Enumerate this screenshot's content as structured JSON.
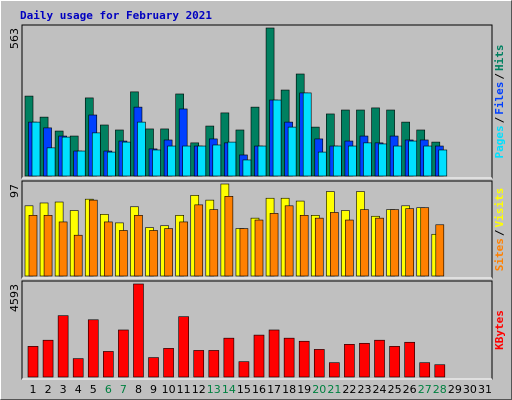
{
  "chart_data": [
    {
      "type": "bar",
      "title": "Daily usage for February 2021",
      "ylim": [
        0,
        563
      ],
      "yticks": [
        563
      ],
      "separator": "/",
      "series": [
        {
          "name": "Hits",
          "color": "#008060",
          "values": [
            304,
            224,
            171,
            152,
            297,
            194,
            175,
            320,
            179,
            179,
            312,
            126,
            190,
            240,
            175,
            262,
            563,
            327,
            388,
            186,
            236,
            251,
            251,
            259,
            251,
            205,
            175,
            129,
            null,
            null,
            null
          ]
        },
        {
          "name": "Files",
          "color": "#0040FF",
          "values": [
            205,
            183,
            152,
            95,
            232,
            95,
            133,
            262,
            103,
            137,
            255,
            114,
            141,
            126,
            80,
            114,
            289,
            205,
            316,
            141,
            114,
            133,
            152,
            126,
            152,
            137,
            137,
            114,
            null,
            null,
            null
          ]
        },
        {
          "name": "Pages",
          "color": "#00E0FF",
          "values": [
            205,
            107,
            148,
            95,
            164,
            91,
            129,
            205,
            99,
            114,
            114,
            114,
            118,
            129,
            61,
            114,
            289,
            186,
            316,
            91,
            114,
            114,
            126,
            122,
            114,
            133,
            114,
            99,
            null,
            null,
            null
          ]
        }
      ]
    },
    {
      "type": "bar",
      "ylim": [
        0,
        97
      ],
      "yticks": [
        97
      ],
      "separator": "/",
      "series": [
        {
          "name": "Visits",
          "color": "#FFFF00",
          "values": [
            74,
            77,
            78,
            69,
            81,
            65,
            56,
            73,
            51,
            53,
            64,
            85,
            80,
            97,
            50,
            61,
            82,
            82,
            79,
            64,
            89,
            69,
            89,
            63,
            70,
            74,
            72,
            44,
            null,
            null,
            null
          ]
        },
        {
          "name": "Sites",
          "color": "#FF8000",
          "values": [
            64,
            64,
            57,
            43,
            80,
            57,
            48,
            64,
            48,
            50,
            57,
            75,
            70,
            84,
            50,
            59,
            66,
            74,
            64,
            61,
            67,
            59,
            70,
            61,
            70,
            71,
            72,
            54,
            null,
            null,
            null
          ]
        }
      ]
    },
    {
      "type": "bar",
      "ylim": [
        0,
        4593
      ],
      "yticks": [
        4593
      ],
      "categories": [
        "1",
        "2",
        "3",
        "4",
        "5",
        "6",
        "7",
        "8",
        "9",
        "10",
        "11",
        "12",
        "13",
        "14",
        "15",
        "16",
        "17",
        "18",
        "19",
        "20",
        "21",
        "22",
        "23",
        "24",
        "25",
        "26",
        "27",
        "28",
        "29",
        "30",
        "31"
      ],
      "category_colors": [
        "#000",
        "#000",
        "#000",
        "#000",
        "#000",
        "#008040",
        "#008040",
        "#000",
        "#000",
        "#000",
        "#000",
        "#000",
        "#008040",
        "#008040",
        "#000",
        "#000",
        "#000",
        "#000",
        "#000",
        "#008040",
        "#008040",
        "#000",
        "#000",
        "#000",
        "#000",
        "#000",
        "#008040",
        "#008040",
        "#000",
        "#000",
        "#000"
      ],
      "series": [
        {
          "name": "KBytes",
          "color": "#FF0000",
          "values": [
            1514,
            1817,
            3028,
            908,
            2826,
            1262,
            2322,
            4593,
            959,
            1413,
            2978,
            1312,
            1312,
            1918,
            757,
            2069,
            2322,
            1918,
            1766,
            1363,
            707,
            1615,
            1665,
            1817,
            1514,
            1716,
            707,
            606,
            null,
            null,
            null
          ]
        }
      ]
    }
  ]
}
